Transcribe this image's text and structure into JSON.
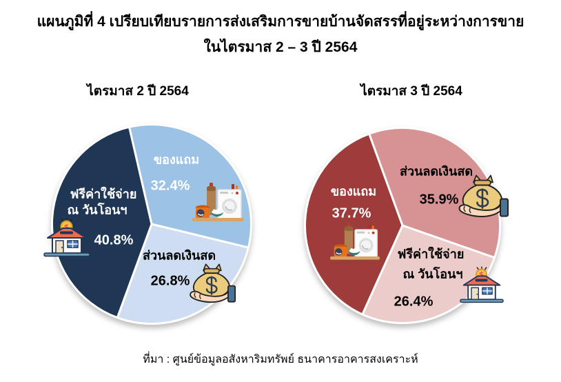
{
  "title": {
    "line1": "แผนภูมิที่ 4 เปรียบเทียบรายการส่งเสริมการขายบ้านจัดสรรที่อยู่ระหว่างการขาย",
    "line2": "ในไตรมาส 2 – 3 ปี 2564"
  },
  "source": "ที่มา : ศูนย์ข้อมูลอสังหาริมทรัพย์ ธนาคารอาคารสงเคราะห์",
  "icons": {
    "appliances": "appliances-freebies-icon",
    "money_bag_hand": "money-bag-in-hand-icon",
    "house_coin": "house-coin-bank-icon"
  },
  "chart_data": [
    {
      "type": "pie",
      "title": "ไตรมาส 2 ปี 2564",
      "unit": "%",
      "start_angle_deg": -13,
      "slice_border_color": "#FFFFFF",
      "slices": [
        {
          "key": "gift",
          "label": "ของแถม",
          "value": 32.4,
          "pct_label": "32.4%",
          "color": "#9CC2E5",
          "text_color": "#FFFFFF",
          "icon": "appliances"
        },
        {
          "key": "cash-discount",
          "label": "ส่วนลดเงินสด",
          "value": 26.8,
          "pct_label": "26.8%",
          "color": "#CEDDF1",
          "text_color": "#000000",
          "icon": "money_bag_hand"
        },
        {
          "key": "free-transfer-fees",
          "label": "ฟรีค่าใช้จ่าย ณ วันโอนฯ",
          "label_lines": [
            "ฟรีค่าใช้จ่าย",
            "ณ วันโอนฯ"
          ],
          "value": 40.8,
          "pct_label": "40.8%",
          "color": "#1F3655",
          "text_color": "#FFFFFF",
          "icon": "house_coin"
        }
      ]
    },
    {
      "type": "pie",
      "title": "ไตรมาส 3 ปี 2564",
      "unit": "%",
      "start_angle_deg": -20,
      "slice_border_color": "#FFFFFF",
      "slices": [
        {
          "key": "cash-discount",
          "label": "ส่วนลดเงินสด",
          "value": 35.9,
          "pct_label": "35.9%",
          "color": "#D79394",
          "text_color": "#000000",
          "icon": "money_bag_hand"
        },
        {
          "key": "free-transfer-fees",
          "label": "ฟรีค่าใช้จ่าย ณ วันโอนฯ",
          "label_lines": [
            "ฟรีค่าใช้จ่าย",
            "ณ วันโอนฯ"
          ],
          "value": 26.4,
          "pct_label": "26.4%",
          "color": "#ECCBCB",
          "text_color": "#000000",
          "icon": "house_coin"
        },
        {
          "key": "gift",
          "label": "ของแถม",
          "value": 37.7,
          "pct_label": "37.7%",
          "color": "#9E3B3B",
          "text_color": "#FFFFFF",
          "icon": "appliances"
        }
      ]
    }
  ]
}
